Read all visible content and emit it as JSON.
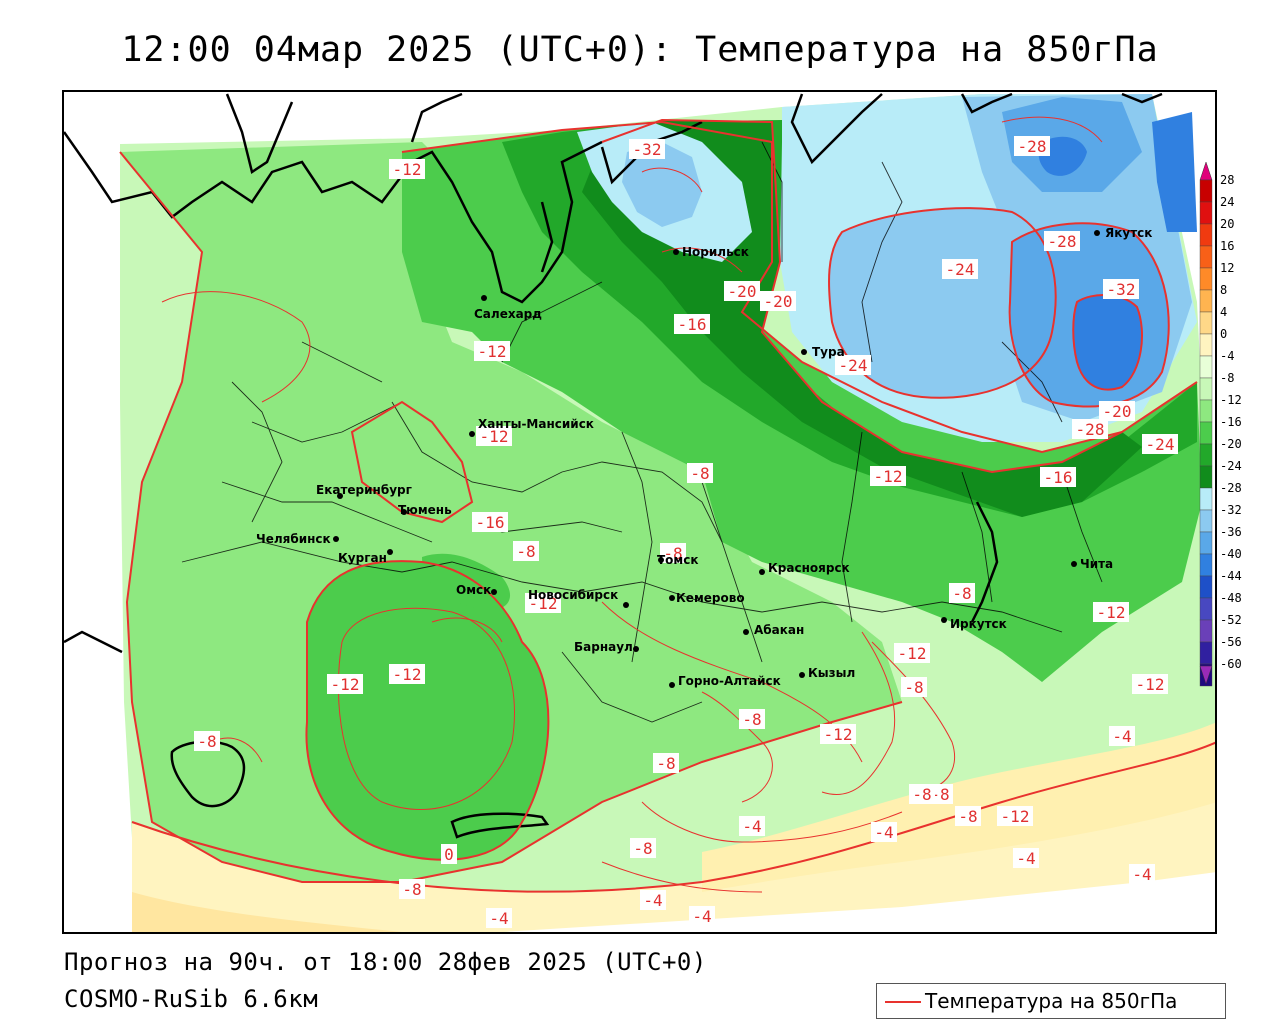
{
  "title": "12:00 04мар 2025 (UTC+0): Температура на 850гПа",
  "footer": {
    "forecast": "Прогноз на 90ч. от 18:00 28фев 2025 (UTC+0)",
    "model": "COSMO-RuSib 6.6км"
  },
  "legend": {
    "label": "Температура на 850гПа",
    "line_color": "#e8322e"
  },
  "scale": {
    "ticks": [
      "28",
      "24",
      "20",
      "16",
      "12",
      "8",
      "4",
      "0",
      "-4",
      "-8",
      "-12",
      "-16",
      "-20",
      "-24",
      "-28",
      "-32",
      "-36",
      "-40",
      "-44",
      "-48",
      "-52",
      "-56",
      "-60"
    ],
    "colors": [
      "#c80000",
      "#e01010",
      "#f03a10",
      "#f86018",
      "#ff8a28",
      "#ffb450",
      "#ffd888",
      "#fff4c0",
      "#e8ffd8",
      "#c8f8b8",
      "#8ee880",
      "#4ccc4c",
      "#22a82a",
      "#118c1c",
      "#b8ecf8",
      "#8ccaf0",
      "#5aa8e8",
      "#3080e0",
      "#1e50c8",
      "#4848c0",
      "#6a40b8",
      "#3020a0",
      "#200880"
    ]
  },
  "isoline_labels": [
    "-12",
    "-32",
    "-28",
    "-28",
    "-24",
    "-20",
    "-20",
    "-16",
    "-24",
    "-32",
    "-12",
    "-12",
    "-8",
    "-12",
    "-16",
    "-20",
    "-28",
    "-24",
    "-16",
    "-8",
    "-8",
    "-12",
    "-8",
    "-12",
    "-12",
    "-12",
    "-8",
    "-12",
    "-8",
    "-12",
    "-12",
    "-8",
    "-8",
    "-4",
    "-8",
    "-4",
    "-4",
    "-8",
    "-4",
    "-8",
    "-8",
    "-4",
    "-4",
    "-4",
    "-4",
    "0",
    "-12",
    "-8"
  ],
  "cities": [
    {
      "name": "Норильск"
    },
    {
      "name": "Якутск"
    },
    {
      "name": "Салехард"
    },
    {
      "name": "Тура"
    },
    {
      "name": "Ханты-Мансийск"
    },
    {
      "name": "Екатеринбург"
    },
    {
      "name": "Тюмень"
    },
    {
      "name": "Челябинск"
    },
    {
      "name": "Курган"
    },
    {
      "name": "Омск"
    },
    {
      "name": "Новосибирск"
    },
    {
      "name": "Томск"
    },
    {
      "name": "Кемерово"
    },
    {
      "name": "Красноярск"
    },
    {
      "name": "Барнаул"
    },
    {
      "name": "Абакан"
    },
    {
      "name": "Кызыл"
    },
    {
      "name": "Горно-Алтайск"
    },
    {
      "name": "Иркутск"
    },
    {
      "name": "Чита"
    }
  ]
}
